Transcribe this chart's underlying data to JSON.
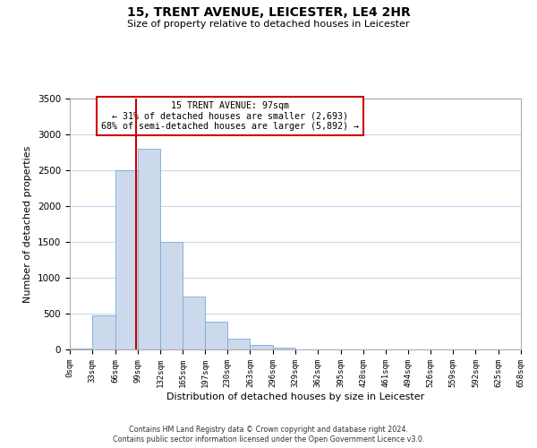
{
  "title": "15, TRENT AVENUE, LEICESTER, LE4 2HR",
  "subtitle": "Size of property relative to detached houses in Leicester",
  "xlabel": "Distribution of detached houses by size in Leicester",
  "ylabel": "Number of detached properties",
  "footnote1": "Contains HM Land Registry data © Crown copyright and database right 2024.",
  "footnote2": "Contains public sector information licensed under the Open Government Licence v3.0.",
  "annotation_line1": "15 TRENT AVENUE: 97sqm",
  "annotation_line2": "← 31% of detached houses are smaller (2,693)",
  "annotation_line3": "68% of semi-detached houses are larger (5,892) →",
  "property_size": 97,
  "bar_color": "#ccd9ed",
  "bar_edge_color": "#7aaad4",
  "vline_color": "#cc0000",
  "annotation_box_color": "#cc0000",
  "grid_color": "#c8d8ec",
  "background_color": "#ffffff",
  "bin_edges": [
    0,
    33,
    66,
    99,
    132,
    165,
    197,
    230,
    263,
    296,
    329,
    362,
    395,
    428,
    461,
    494,
    526,
    559,
    592,
    625,
    658
  ],
  "bin_heights": [
    10,
    470,
    2500,
    2800,
    1500,
    740,
    390,
    150,
    60,
    20,
    5,
    5,
    5,
    0,
    0,
    0,
    0,
    0,
    0,
    0
  ],
  "tick_labels": [
    "0sqm",
    "33sqm",
    "66sqm",
    "99sqm",
    "132sqm",
    "165sqm",
    "197sqm",
    "230sqm",
    "263sqm",
    "296sqm",
    "329sqm",
    "362sqm",
    "395sqm",
    "428sqm",
    "461sqm",
    "494sqm",
    "526sqm",
    "559sqm",
    "592sqm",
    "625sqm",
    "658sqm"
  ],
  "ylim": [
    0,
    3500
  ],
  "yticks": [
    0,
    500,
    1000,
    1500,
    2000,
    2500,
    3000,
    3500
  ]
}
